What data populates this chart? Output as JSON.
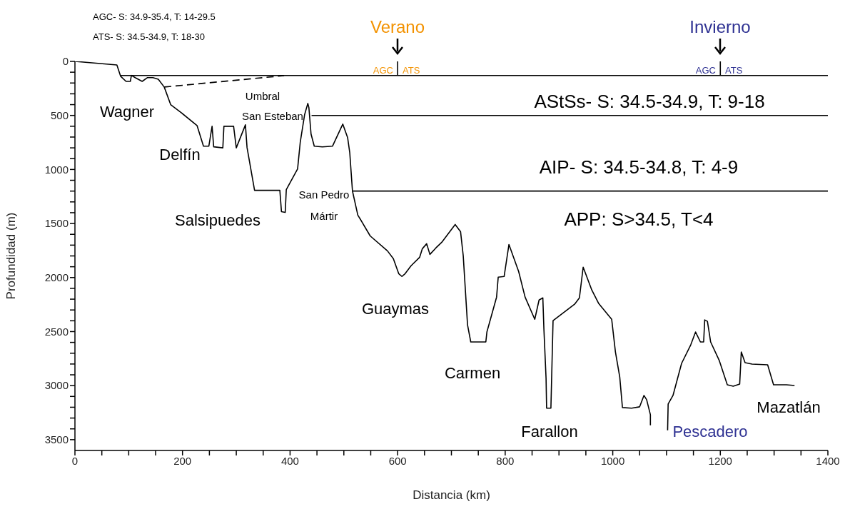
{
  "chart_data": {
    "type": "line",
    "xlabel": "Distancia (km)",
    "ylabel": "Profundidad (m)",
    "xlim": [
      0,
      1400
    ],
    "xticks": [
      0,
      {
        "value": 50,
        "label": null
      },
      {
        "value": 100,
        "label": null
      },
      {
        "value": 150,
        "label": null
      },
      200,
      {
        "value": 250,
        "label": null
      },
      {
        "value": 300,
        "label": null
      },
      {
        "value": 350,
        "label": null
      },
      400,
      {
        "value": 450,
        "label": null
      },
      {
        "value": 500,
        "label": null
      },
      {
        "value": 550,
        "label": null
      },
      600,
      {
        "value": 650,
        "label": null
      },
      {
        "value": 700,
        "label": null
      },
      {
        "value": 750,
        "label": null
      },
      800,
      {
        "value": 850,
        "label": null
      },
      {
        "value": 900,
        "label": null
      },
      {
        "value": 950,
        "label": null
      },
      1000,
      {
        "value": 1050,
        "label": null
      },
      {
        "value": 1100,
        "label": null
      },
      {
        "value": 1150,
        "label": null
      },
      1200,
      {
        "value": 1250,
        "label": null
      },
      {
        "value": 1300,
        "label": null
      },
      {
        "value": 1350,
        "label": null
      },
      1400
    ],
    "ylim": [
      3600,
      0
    ],
    "yticks": [
      0,
      {
        "value": 100,
        "label": null
      },
      {
        "value": 200,
        "label": null
      },
      {
        "value": 300,
        "label": null
      },
      {
        "value": 400,
        "label": null
      },
      500,
      {
        "value": 600,
        "label": null
      },
      {
        "value": 700,
        "label": null
      },
      {
        "value": 800,
        "label": null
      },
      {
        "value": 900,
        "label": null
      },
      1000,
      {
        "value": 1100,
        "label": null
      },
      {
        "value": 1200,
        "label": null
      },
      {
        "value": 1300,
        "label": null
      },
      {
        "value": 1400,
        "label": null
      },
      1500,
      {
        "value": 1600,
        "label": null
      },
      {
        "value": 1700,
        "label": null
      },
      {
        "value": 1800,
        "label": null
      },
      {
        "value": 1900,
        "label": null
      },
      2000,
      {
        "value": 2100,
        "label": null
      },
      {
        "value": 2200,
        "label": null
      },
      {
        "value": 2300,
        "label": null
      },
      {
        "value": 2400,
        "label": null
      },
      2500,
      {
        "value": 2600,
        "label": null
      },
      {
        "value": 2700,
        "label": null
      },
      {
        "value": 2800,
        "label": null
      },
      {
        "value": 2900,
        "label": null
      },
      3000,
      {
        "value": 3100,
        "label": null
      },
      {
        "value": 3200,
        "label": null
      },
      {
        "value": 3300,
        "label": null
      },
      {
        "value": 3400,
        "label": null
      },
      3500
    ],
    "marker": "none",
    "line_style": "solid",
    "series": [
      {
        "color": "#000000",
        "x": [
          0,
          78,
          85,
          95,
          103,
          105,
          112,
          125,
          135,
          145,
          155,
          166,
          178,
          196,
          227,
          239,
          249,
          255,
          258,
          275,
          277,
          295,
          300,
          317,
          320,
          334,
          381,
          384,
          391,
          393,
          414,
          419,
          427,
          433,
          435,
          439,
          445,
          460,
          479,
          498,
          507,
          511,
          516,
          526,
          531,
          549,
          581,
          592,
          602,
          608,
          614,
          625,
          641,
          646,
          654,
          660,
          671,
          682,
          707,
          717,
          722,
          730,
          736,
          764,
          766,
          784,
          787,
          798,
          807,
          825,
          837,
          855,
          863,
          870,
          872,
          876,
          877,
          885,
          889,
          929,
          938,
          945,
          961,
          974,
          998,
          1005,
          1013,
          1018,
          1035,
          1050,
          1058,
          1063,
          1070,
          1070,
          1077,
          1090,
          1102,
          1103,
          1112,
          1128,
          1145,
          1154,
          1163,
          1169,
          1171,
          1176,
          1180,
          1182,
          1198,
          1213,
          1224,
          1236,
          1239,
          1246,
          1259,
          1288,
          1299,
          1323,
          1338
        ],
        "values": [
          0,
          33,
          138,
          185,
          185,
          130,
          150,
          185,
          150,
          150,
          165,
          237,
          400,
          468,
          593,
          784,
          784,
          600,
          790,
          800,
          600,
          600,
          800,
          587,
          797,
          1193,
          1193,
          1390,
          1397,
          1186,
          995,
          745,
          494,
          389,
          428,
          672,
          784,
          791,
          784,
          580,
          705,
          844,
          1199,
          1423,
          1463,
          1615,
          1753,
          1825,
          1964,
          1990,
          1964,
          1891,
          1812,
          1733,
          1687,
          1786,
          1727,
          1674,
          1509,
          1575,
          1799,
          2438,
          2596,
          2596,
          2504,
          2181,
          1997,
          1990,
          1694,
          1944,
          2181,
          2386,
          2208,
          2188,
          2478,
          2933,
          3209,
          3209,
          2399,
          2247,
          2188,
          1904,
          2115,
          2241,
          2386,
          2689,
          2920,
          3203,
          3209,
          3196,
          3091,
          3130,
          3269,
          3367,
          null,
          null,
          3414,
          3170,
          3091,
          2794,
          2623,
          2504,
          2596,
          2596,
          2392,
          2405,
          2531,
          2596,
          2767,
          2992,
          3005,
          2985,
          2689,
          2788,
          2801,
          2807,
          2992,
          2992,
          2999
        ]
      },
      {
        "color": "#000000",
        "line_style": "dashed",
        "x": [
          166,
          389
        ],
        "values": [
          237,
          132
        ]
      },
      {
        "color": "#000000",
        "x": [
          85,
          1400
        ],
        "values": [
          130,
          130
        ]
      },
      {
        "color": "#000000",
        "x": [
          440,
          1400
        ],
        "values": [
          500,
          500
        ]
      },
      {
        "color": "#000000",
        "x": [
          516,
          1400
        ],
        "values": [
          1200,
          1200
        ]
      },
      {
        "color": "#000000",
        "x": [
          600,
          600
        ],
        "values": [
          0,
          130
        ]
      },
      {
        "color": "#000000",
        "x": [
          1200,
          1200
        ],
        "values": [
          0,
          130
        ]
      }
    ],
    "annotations": [
      "AGC- S: 34.9-35.4, T: 14-29.5",
      "ATS- S: 34.5-34.9, T: 18-30",
      "Verano",
      "Invierno",
      "AGC",
      "ATS",
      "AGC",
      "ATS",
      "AStSs- S: 34.5-34.9, T: 9-18",
      "AIP- S: 34.5-34.8,  T: 4-9",
      "APP:  S>34.5,  T<4",
      "Wagner",
      "Umbral",
      "San Esteban",
      "Delfín",
      "San Pedro",
      "Mártir",
      "Salsipuedes",
      "Guaymas",
      "Carmen",
      "Farallon",
      "Pescadero",
      "Mazatlán"
    ]
  }
}
